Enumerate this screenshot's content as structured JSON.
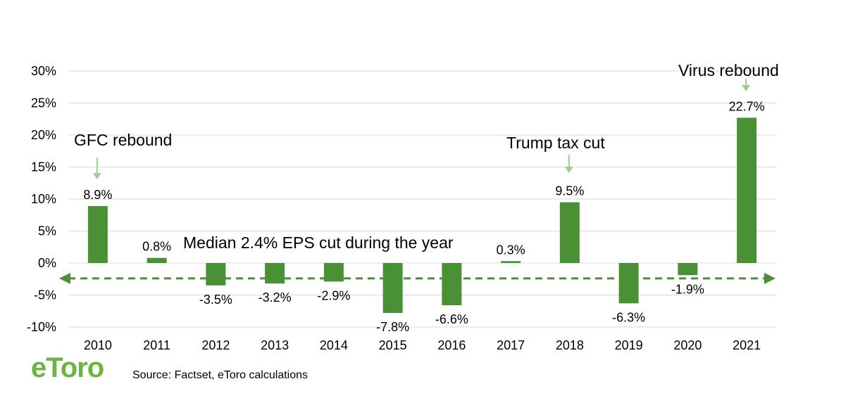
{
  "chart_data": {
    "type": "bar",
    "categories": [
      "2010",
      "2011",
      "2012",
      "2013",
      "2014",
      "2015",
      "2016",
      "2017",
      "2018",
      "2019",
      "2020",
      "2021"
    ],
    "values": [
      8.9,
      0.8,
      -3.5,
      -3.2,
      -2.9,
      -7.8,
      -6.6,
      0.3,
      9.5,
      -6.3,
      -1.9,
      22.7
    ],
    "value_labels": [
      "8.9%",
      "0.8%",
      "-3.5%",
      "-3.2%",
      "-2.9%",
      "-7.8%",
      "-6.6%",
      "0.3%",
      "9.5%",
      "-6.3%",
      "-1.9%",
      "22.7%"
    ],
    "yticks": [
      30,
      25,
      20,
      15,
      10,
      5,
      0,
      -5,
      -10
    ],
    "ytick_labels": [
      "30%",
      "25%",
      "20%",
      "15%",
      "10%",
      "5%",
      "0%",
      "-5%",
      "-10%"
    ],
    "ylim": [
      -10,
      30
    ],
    "grid": true,
    "bar_color": "#4a9136",
    "reference_line": {
      "value": -2.4,
      "label": "Median 2.4% EPS cut during the year",
      "style": "dashed double-arrow",
      "color": "#4a9136"
    },
    "annotations": [
      {
        "text": "GFC rebound",
        "category": "2010"
      },
      {
        "text": "Trump tax cut",
        "category": "2018"
      },
      {
        "text": "Virus rebound",
        "category": "2021"
      }
    ],
    "arrow_color": "#9fd08a"
  },
  "footer": {
    "logo_text": "eToro",
    "source": "Source: Factset, eToro calculations"
  }
}
